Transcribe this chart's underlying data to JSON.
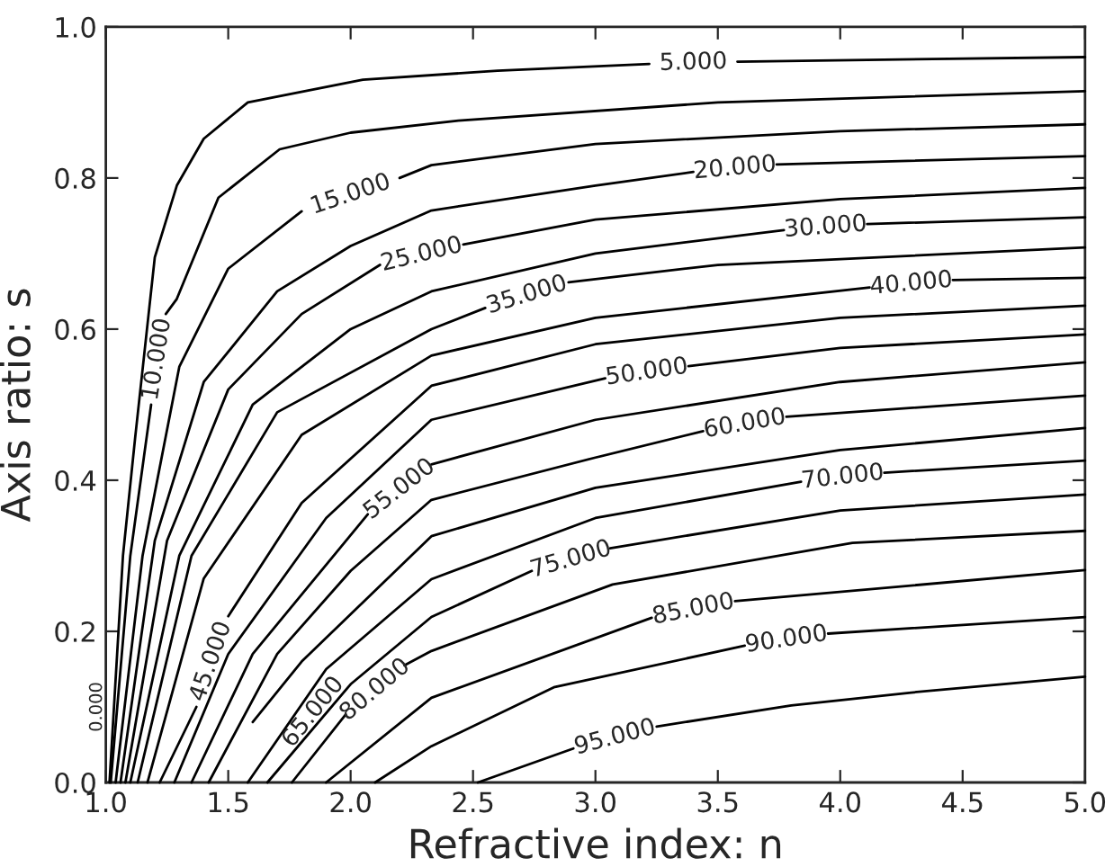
{
  "chart_data": {
    "type": "line",
    "xlabel": "Refractive index: n",
    "ylabel": "Axis ratio: s",
    "xlim": [
      1.0,
      5.0
    ],
    "ylim": [
      0.0,
      1.0
    ],
    "xticks": [
      {
        "value": 1.0,
        "label": "1.0"
      },
      {
        "value": 1.5,
        "label": "1.5"
      },
      {
        "value": 2.0,
        "label": "2.0"
      },
      {
        "value": 2.5,
        "label": "2.5"
      },
      {
        "value": 3.0,
        "label": "3.0"
      },
      {
        "value": 3.5,
        "label": "3.5"
      },
      {
        "value": 4.0,
        "label": "4.0"
      },
      {
        "value": 4.5,
        "label": "4.5"
      },
      {
        "value": 5.0,
        "label": "5.0"
      }
    ],
    "yticks": [
      {
        "value": 0.0,
        "label": "0.0"
      },
      {
        "value": 0.2,
        "label": "0.2"
      },
      {
        "value": 0.4,
        "label": "0.4"
      },
      {
        "value": 0.6,
        "label": "0.6"
      },
      {
        "value": 0.8,
        "label": "0.8"
      },
      {
        "value": 1.0,
        "label": "1.0"
      }
    ],
    "marker": "none",
    "line_style": "solid",
    "annotations": [
      "0.000"
    ],
    "series": [
      {
        "name": "5.000",
        "color": "#000000",
        "x": [
          1.015,
          1.07,
          1.12,
          1.2,
          1.29,
          1.4,
          1.58,
          2.05,
          2.6,
          3.22,
          3.4,
          3.58,
          5.0
        ],
        "values": [
          0.0,
          0.3,
          0.457,
          0.695,
          0.79,
          0.852,
          0.9,
          0.93,
          0.942,
          0.951,
          null,
          0.954,
          0.96
        ]
      },
      {
        "name": "10.000",
        "color": "#000000",
        "x": [
          1.02,
          1.1,
          1.185,
          1.21,
          1.245,
          1.29,
          1.46,
          1.71,
          2.0,
          2.44,
          3.5,
          5.0
        ],
        "values": [
          0.0,
          0.3,
          0.5,
          null,
          0.62,
          0.64,
          0.774,
          0.838,
          0.86,
          0.876,
          0.9,
          0.915
        ]
      },
      {
        "name": "15.000",
        "color": "#000000",
        "x": [
          1.04,
          1.15,
          1.3,
          1.5,
          1.8,
          2.0,
          2.2,
          2.33,
          3.0,
          4.0,
          5.0
        ],
        "values": [
          0.0,
          0.3,
          0.55,
          0.68,
          0.756,
          null,
          0.8,
          0.817,
          0.845,
          0.862,
          0.871
        ]
      },
      {
        "name": "20.000",
        "color": "#000000",
        "x": [
          1.06,
          1.2,
          1.4,
          1.7,
          2.0,
          2.33,
          3.0,
          3.4,
          3.57,
          3.74,
          5.0
        ],
        "values": [
          0.0,
          0.32,
          0.53,
          0.65,
          0.71,
          0.757,
          0.79,
          0.808,
          null,
          0.818,
          0.829
        ]
      },
      {
        "name": "25.000",
        "color": "#000000",
        "x": [
          1.08,
          1.25,
          1.5,
          1.8,
          2.12,
          2.29,
          2.46,
          3.0,
          4.0,
          5.0
        ],
        "values": [
          0.0,
          0.32,
          0.52,
          0.62,
          0.685,
          null,
          0.712,
          0.745,
          0.772,
          0.787
        ]
      },
      {
        "name": "30.000",
        "color": "#000000",
        "x": [
          1.1,
          1.3,
          1.6,
          2.0,
          2.33,
          3.0,
          3.77,
          3.94,
          4.11,
          5.0
        ],
        "values": [
          0.0,
          0.3,
          0.5,
          0.6,
          0.65,
          0.7,
          0.731,
          null,
          0.739,
          0.748
        ]
      },
      {
        "name": "35.000",
        "color": "#000000",
        "x": [
          1.13,
          1.35,
          1.7,
          2.33,
          2.55,
          2.72,
          2.89,
          3.5,
          5.0
        ],
        "values": [
          0.0,
          0.3,
          0.49,
          0.6,
          0.628,
          null,
          0.662,
          0.685,
          0.708
        ]
      },
      {
        "name": "40.000",
        "color": "#000000",
        "x": [
          1.17,
          1.4,
          1.8,
          2.33,
          3.0,
          4.12,
          4.29,
          4.46,
          5.0
        ],
        "values": [
          0.0,
          0.27,
          0.46,
          0.565,
          0.615,
          0.655,
          null,
          0.665,
          0.668
        ]
      },
      {
        "name": "45.000",
        "color": "#000000",
        "x": [
          1.22,
          1.37,
          1.43,
          1.5,
          1.8,
          2.33,
          3.0,
          4.0,
          5.0
        ],
        "values": [
          0.0,
          0.1,
          null,
          0.22,
          0.37,
          0.525,
          0.58,
          0.615,
          0.631
        ]
      },
      {
        "name": "50.000",
        "color": "#000000",
        "x": [
          1.28,
          1.5,
          1.9,
          2.33,
          3.04,
          3.21,
          3.38,
          4.0,
          5.0
        ],
        "values": [
          0.0,
          0.17,
          0.35,
          0.48,
          0.535,
          null,
          0.551,
          0.575,
          0.593
        ]
      },
      {
        "name": "55.000",
        "color": "#000000",
        "x": [
          1.35,
          1.6,
          2.07,
          2.2,
          2.33,
          3.0,
          4.0,
          5.0
        ],
        "values": [
          0.0,
          0.17,
          0.355,
          null,
          0.421,
          0.48,
          0.53,
          0.556
        ]
      },
      {
        "name": "60.000",
        "color": "#000000",
        "x": [
          1.42,
          1.7,
          2.0,
          2.33,
          3.0,
          3.44,
          3.61,
          3.78,
          5.0
        ],
        "values": [
          0.0,
          0.17,
          0.28,
          0.374,
          0.43,
          0.465,
          null,
          0.484,
          0.512
        ]
      },
      {
        "name": "65.000",
        "color": "#000000",
        "x": [
          1.6,
          1.8,
          2.33,
          3.0,
          4.0,
          5.0
        ],
        "values": [
          0.08,
          0.16,
          0.326,
          0.39,
          0.44,
          0.469
        ]
      },
      {
        "name": "70.000",
        "color": "#000000",
        "x": [
          1.58,
          1.9,
          2.33,
          3.0,
          3.84,
          4.01,
          4.18,
          5.0
        ],
        "values": [
          0.0,
          0.15,
          0.269,
          0.35,
          0.398,
          null,
          0.41,
          0.426
        ]
      },
      {
        "name": "75.000",
        "color": "#000000",
        "x": [
          1.66,
          2.0,
          2.33,
          2.74,
          2.9,
          3.06,
          4.0,
          5.0
        ],
        "values": [
          0.0,
          0.13,
          0.219,
          0.28,
          null,
          0.31,
          0.36,
          0.381
        ]
      },
      {
        "name": "80.000",
        "color": "#000000",
        "x": [
          1.76,
          1.98,
          2.1,
          2.22,
          2.33,
          3.07,
          4.05,
          5.0
        ],
        "values": [
          0.0,
          0.09,
          null,
          0.155,
          0.174,
          0.262,
          0.317,
          0.333
        ]
      },
      {
        "name": "85.000",
        "color": "#000000",
        "x": [
          1.9,
          2.33,
          3.23,
          3.4,
          3.57,
          5.0
        ],
        "values": [
          0.0,
          0.112,
          0.218,
          null,
          0.24,
          0.281
        ]
      },
      {
        "name": "90.000",
        "color": "#000000",
        "x": [
          2.1,
          2.33,
          2.83,
          3.61,
          3.78,
          3.95,
          5.0
        ],
        "values": [
          0.0,
          0.048,
          0.126,
          0.181,
          null,
          0.197,
          0.219
        ]
      },
      {
        "name": "95.000",
        "color": "#000000",
        "x": [
          2.52,
          2.91,
          3.08,
          3.25,
          3.8,
          4.29,
          5.0
        ],
        "values": [
          0.0,
          0.045,
          null,
          0.074,
          0.102,
          0.119,
          0.14
        ]
      }
    ]
  }
}
